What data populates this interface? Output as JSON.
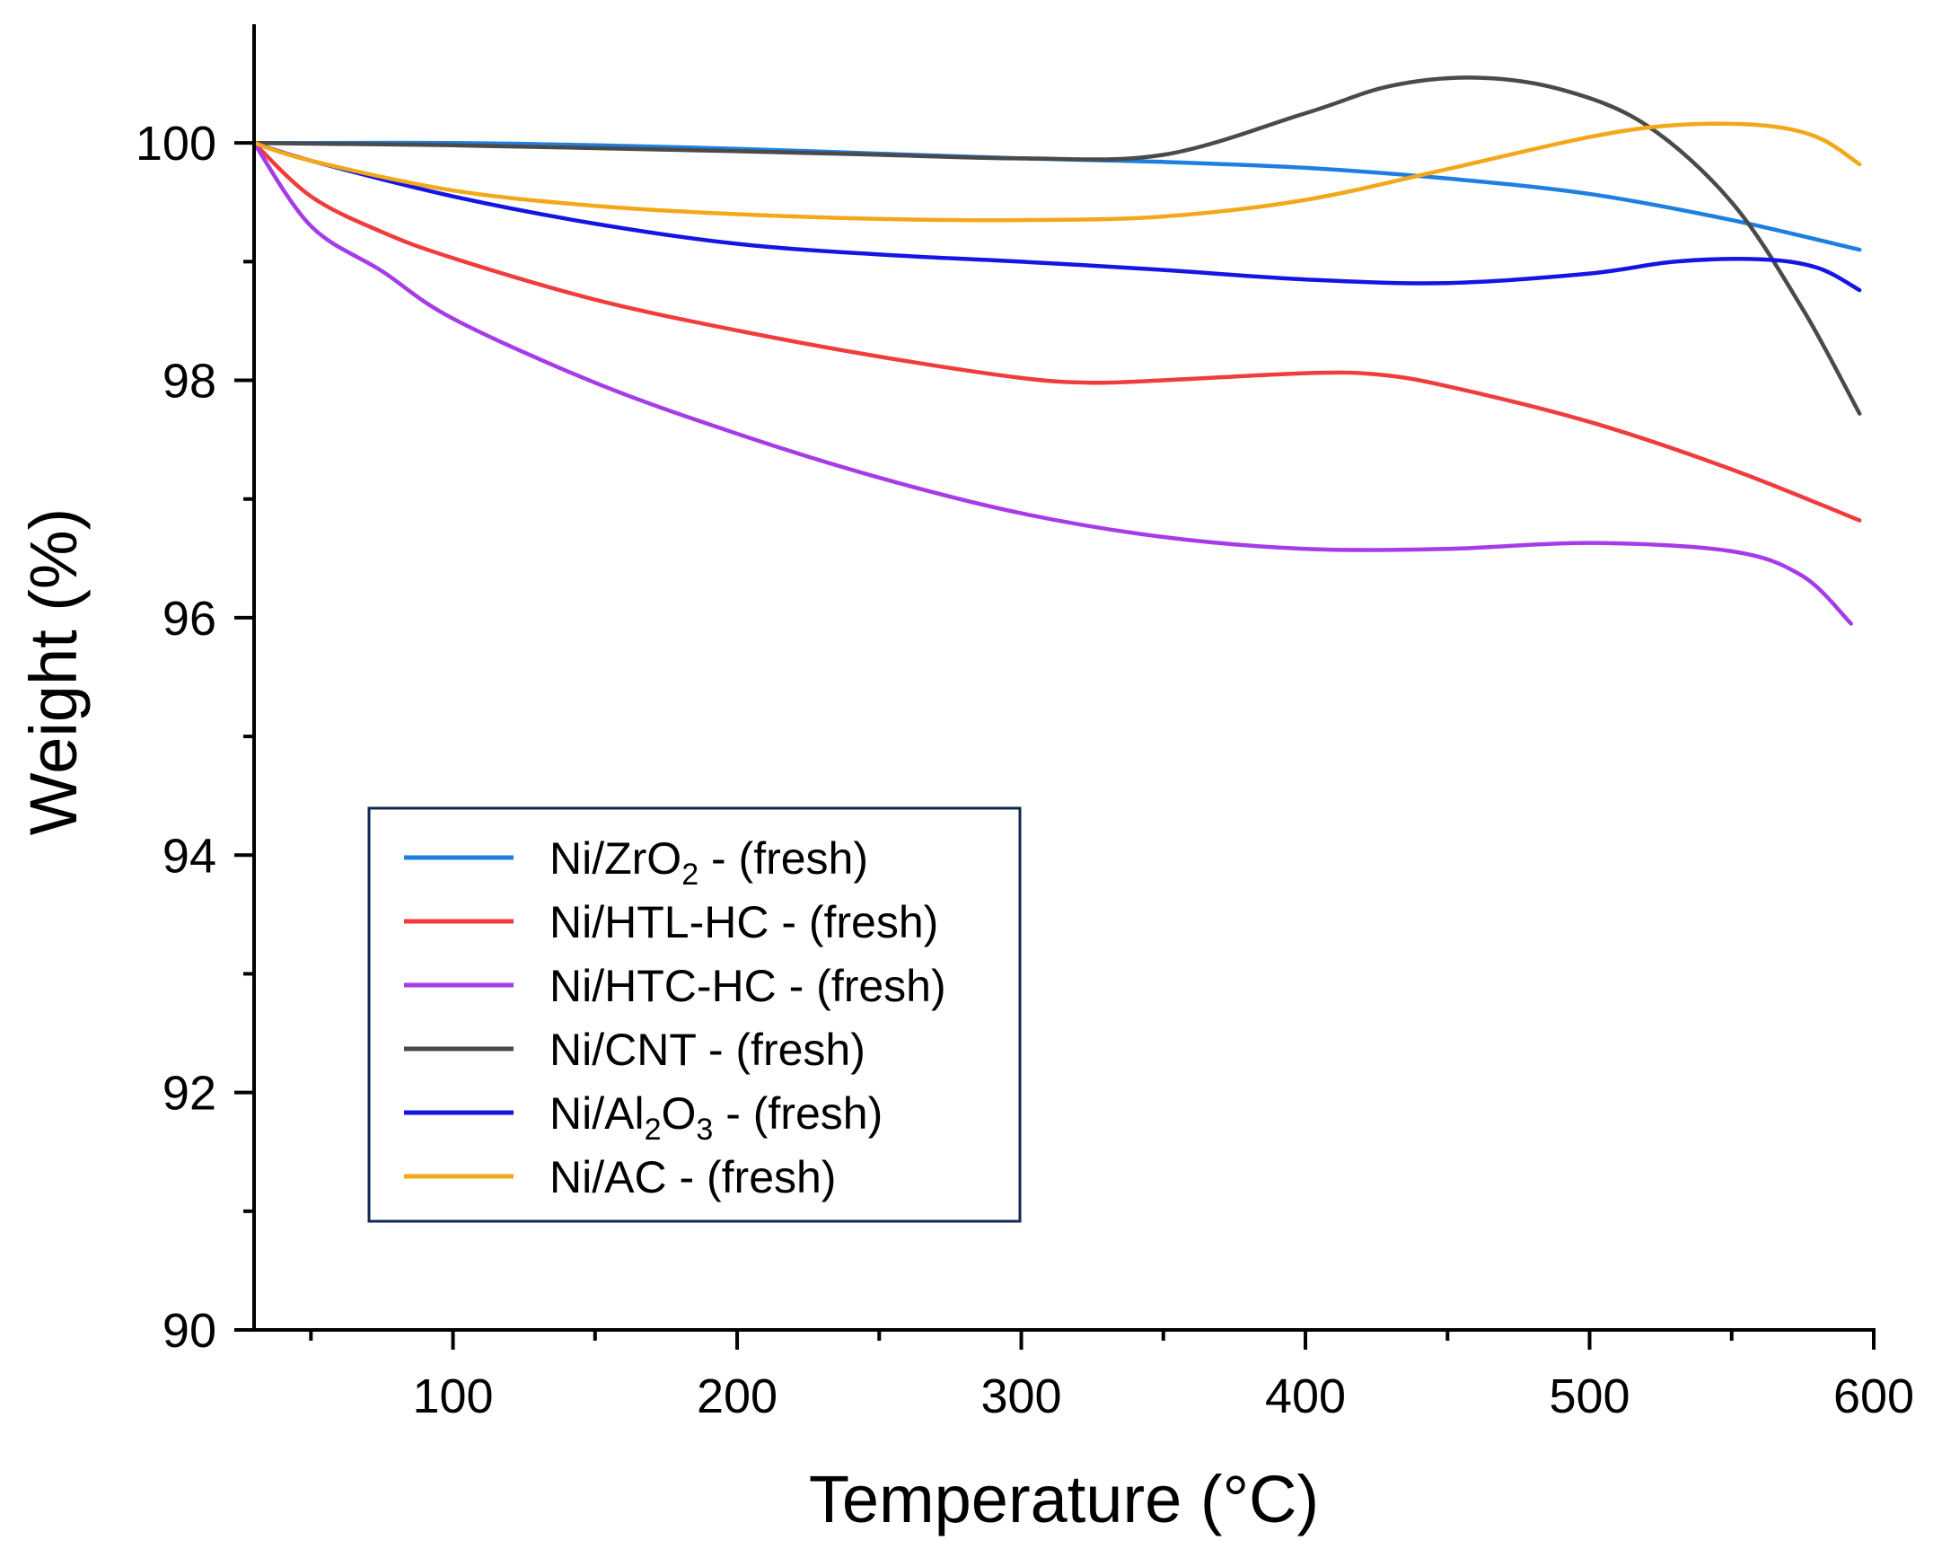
{
  "chart_data": {
    "type": "line",
    "title": "",
    "xlabel": "Temperature (°C)",
    "ylabel": "Weight (%)",
    "xlim": [
      30,
      600
    ],
    "ylim": [
      90,
      101
    ],
    "x_ticks": [
      100,
      200,
      300,
      400,
      500,
      600
    ],
    "x_minor_ticks": [
      50,
      150,
      250,
      350,
      450,
      550
    ],
    "y_ticks": [
      90,
      92,
      94,
      96,
      98,
      100
    ],
    "y_minor_ticks": [
      91,
      93,
      95,
      97,
      99
    ],
    "x_tick_labels": [
      "100",
      "200",
      "300",
      "400",
      "500",
      "600"
    ],
    "y_tick_labels": [
      "90",
      "92",
      "94",
      "96",
      "98",
      "100"
    ],
    "legend_position": "lower-left",
    "series": [
      {
        "name": "Ni/ZrO2 - (fresh)",
        "label_parts": [
          {
            "t": "Ni/ZrO"
          },
          {
            "t": "2",
            "sub": true
          },
          {
            "t": " - (fresh)"
          }
        ],
        "color": "#1E7FE0",
        "x": [
          30,
          50,
          100,
          150,
          200,
          250,
          300,
          350,
          400,
          450,
          500,
          550,
          595
        ],
        "y": [
          100.0,
          100.0,
          100.0,
          99.98,
          99.95,
          99.91,
          99.87,
          99.84,
          99.79,
          99.7,
          99.57,
          99.35,
          99.1
        ]
      },
      {
        "name": "Ni/HTL-HC - (fresh)",
        "label_parts": [
          {
            "t": "Ni/HTL-HC - (fresh)"
          }
        ],
        "color": "#F03C3C",
        "x": [
          30,
          50,
          75,
          100,
          150,
          200,
          250,
          300,
          325,
          350,
          400,
          425,
          450,
          500,
          550,
          595
        ],
        "y": [
          100.0,
          99.55,
          99.25,
          99.03,
          98.68,
          98.42,
          98.2,
          98.02,
          97.98,
          98.0,
          98.06,
          98.05,
          97.95,
          97.65,
          97.25,
          96.82
        ]
      },
      {
        "name": "Ni/HTC-HC - (fresh)",
        "label_parts": [
          {
            "t": "Ni/HTC-HC - (fresh)"
          }
        ],
        "color": "#A63CE8",
        "x": [
          30,
          50,
          75,
          100,
          150,
          200,
          250,
          300,
          350,
          400,
          450,
          500,
          550,
          575,
          592
        ],
        "y": [
          100.0,
          99.3,
          98.92,
          98.52,
          97.98,
          97.55,
          97.18,
          96.88,
          96.68,
          96.58,
          96.58,
          96.63,
          96.56,
          96.35,
          95.95
        ]
      },
      {
        "name": "Ni/CNT - (fresh)",
        "label_parts": [
          {
            "t": "Ni/CNT - (fresh)"
          }
        ],
        "color": "#4A4A4A",
        "x": [
          30,
          100,
          200,
          250,
          300,
          350,
          400,
          430,
          460,
          490,
          520,
          550,
          575,
          595
        ],
        "y": [
          100.0,
          99.98,
          99.93,
          99.9,
          99.87,
          99.9,
          100.25,
          100.48,
          100.55,
          100.45,
          100.15,
          99.5,
          98.6,
          97.72
        ]
      },
      {
        "name": "Ni/Al2O3 - (fresh)",
        "label_parts": [
          {
            "t": "Ni/Al"
          },
          {
            "t": "2",
            "sub": true
          },
          {
            "t": "O"
          },
          {
            "t": "3",
            "sub": true
          },
          {
            "t": " - (fresh)"
          }
        ],
        "color": "#1414E6",
        "x": [
          30,
          50,
          100,
          150,
          200,
          250,
          300,
          350,
          400,
          450,
          500,
          530,
          560,
          580,
          595
        ],
        "y": [
          100.0,
          99.85,
          99.55,
          99.32,
          99.15,
          99.06,
          99.0,
          98.93,
          98.85,
          98.82,
          98.9,
          99.0,
          99.02,
          98.95,
          98.76
        ]
      },
      {
        "name": "Ni/AC - (fresh)",
        "label_parts": [
          {
            "t": "Ni/AC - (fresh)"
          }
        ],
        "color": "#F2A818",
        "x": [
          30,
          50,
          100,
          150,
          200,
          250,
          300,
          350,
          400,
          450,
          500,
          530,
          560,
          580,
          595
        ],
        "y": [
          100.0,
          99.85,
          99.6,
          99.47,
          99.4,
          99.36,
          99.35,
          99.38,
          99.52,
          99.78,
          100.05,
          100.15,
          100.15,
          100.05,
          99.82
        ]
      }
    ]
  }
}
